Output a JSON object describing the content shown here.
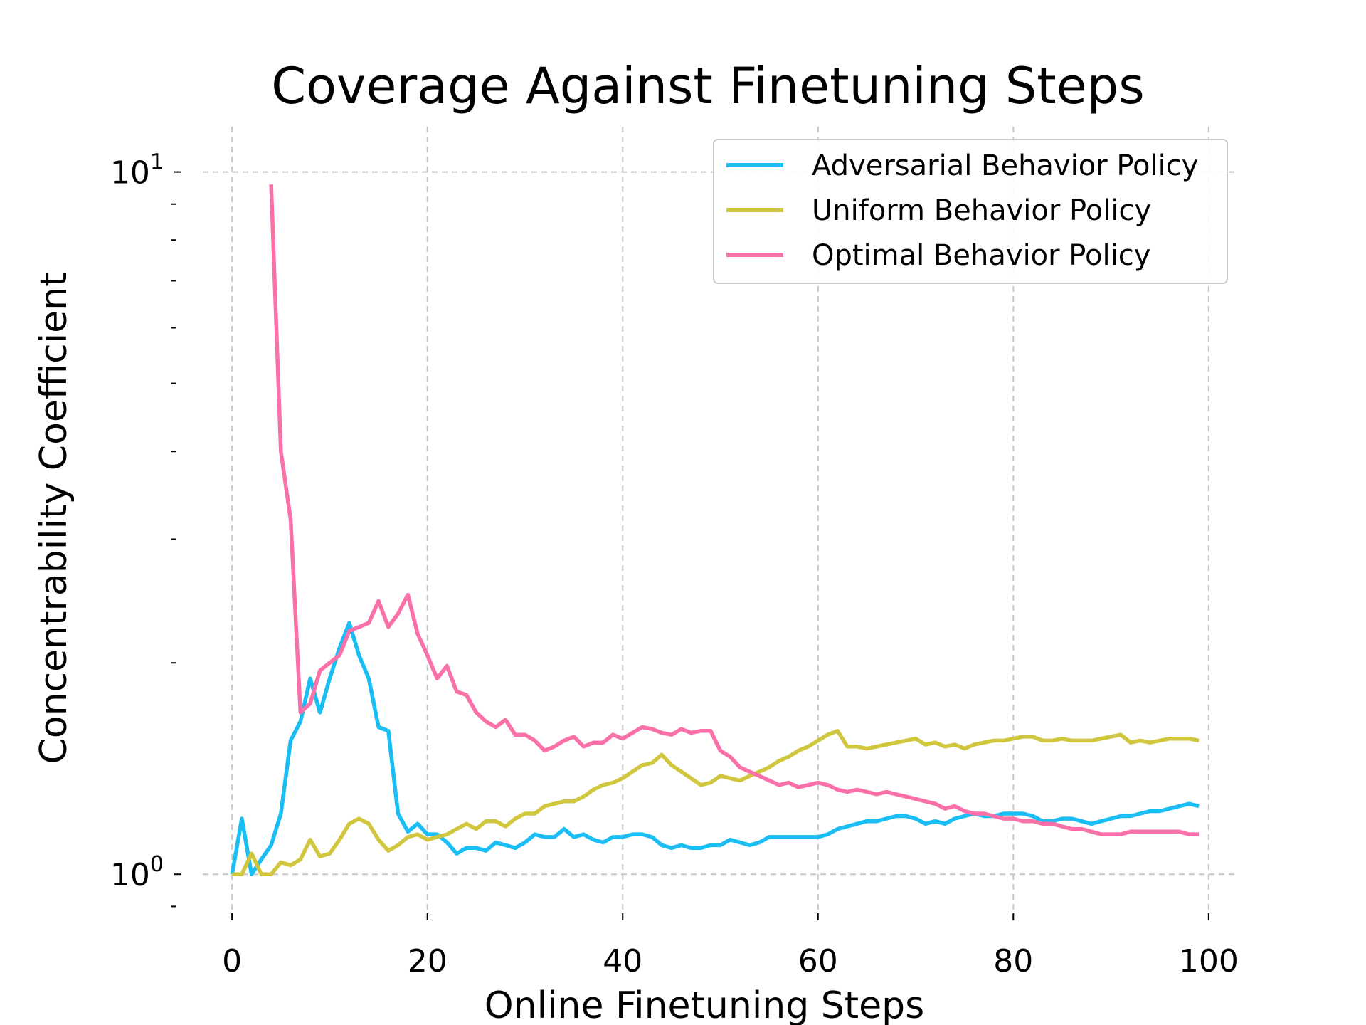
{
  "chart_data": {
    "type": "line",
    "title": "Coverage Against Finetuning Steps",
    "xlabel": "Online Finetuning Steps",
    "ylabel": "Concentrability Coefficient",
    "xlim": [
      -3,
      103
    ],
    "ylim": [
      0.88,
      11.6
    ],
    "yscale": "log",
    "grid": true,
    "legend_placement": "top-right",
    "x_ticks": [
      {
        "value": 0,
        "label": "0"
      },
      {
        "value": 20,
        "label": "20"
      },
      {
        "value": 40,
        "label": "40"
      },
      {
        "value": 60,
        "label": "60"
      },
      {
        "value": 80,
        "label": "80"
      },
      {
        "value": 100,
        "label": "100"
      }
    ],
    "y_ticks": [
      {
        "value": 1,
        "base": "10",
        "exp": "0"
      },
      {
        "value": 10,
        "base": "10",
        "exp": "1"
      }
    ],
    "y_minor_ticks": [
      0.9,
      2,
      3,
      4,
      5,
      6,
      7,
      8,
      9
    ],
    "series": [
      {
        "name": "Adversarial Behavior Policy",
        "color": "#1ABEF5",
        "x": [
          0,
          1,
          2,
          3,
          4,
          5,
          6,
          7,
          8,
          9,
          10,
          11,
          12,
          13,
          14,
          15,
          16,
          17,
          18,
          19,
          20,
          21,
          22,
          23,
          24,
          25,
          26,
          27,
          28,
          29,
          30,
          31,
          32,
          33,
          34,
          35,
          36,
          37,
          38,
          39,
          40,
          41,
          42,
          43,
          44,
          45,
          46,
          47,
          48,
          49,
          50,
          51,
          52,
          53,
          54,
          55,
          56,
          57,
          58,
          59,
          60,
          61,
          62,
          63,
          64,
          65,
          66,
          67,
          68,
          69,
          70,
          71,
          72,
          73,
          74,
          75,
          76,
          77,
          78,
          79,
          80,
          81,
          82,
          83,
          84,
          85,
          86,
          87,
          88,
          89,
          90,
          91,
          92,
          93,
          94,
          95,
          96,
          97,
          98,
          99
        ],
        "values": [
          1.0,
          1.2,
          1.0,
          1.05,
          1.1,
          1.22,
          1.55,
          1.65,
          1.9,
          1.7,
          1.9,
          2.1,
          2.28,
          2.05,
          1.9,
          1.62,
          1.6,
          1.22,
          1.15,
          1.18,
          1.14,
          1.14,
          1.11,
          1.07,
          1.09,
          1.09,
          1.08,
          1.11,
          1.1,
          1.09,
          1.11,
          1.14,
          1.13,
          1.13,
          1.16,
          1.13,
          1.14,
          1.12,
          1.11,
          1.13,
          1.13,
          1.14,
          1.14,
          1.13,
          1.1,
          1.09,
          1.1,
          1.09,
          1.09,
          1.1,
          1.1,
          1.12,
          1.11,
          1.1,
          1.11,
          1.13,
          1.13,
          1.13,
          1.13,
          1.13,
          1.13,
          1.14,
          1.16,
          1.17,
          1.18,
          1.19,
          1.19,
          1.2,
          1.21,
          1.21,
          1.2,
          1.18,
          1.19,
          1.18,
          1.2,
          1.21,
          1.22,
          1.21,
          1.21,
          1.22,
          1.22,
          1.22,
          1.21,
          1.19,
          1.19,
          1.2,
          1.2,
          1.19,
          1.18,
          1.19,
          1.2,
          1.21,
          1.21,
          1.22,
          1.23,
          1.23,
          1.24,
          1.25,
          1.26,
          1.25
        ]
      },
      {
        "name": "Uniform Behavior Policy",
        "color": "#D1C73F",
        "x": [
          0,
          1,
          2,
          3,
          4,
          5,
          6,
          7,
          8,
          9,
          10,
          11,
          12,
          13,
          14,
          15,
          16,
          17,
          18,
          19,
          20,
          21,
          22,
          23,
          24,
          25,
          26,
          27,
          28,
          29,
          30,
          31,
          32,
          33,
          34,
          35,
          36,
          37,
          38,
          39,
          40,
          41,
          42,
          43,
          44,
          45,
          46,
          47,
          48,
          49,
          50,
          51,
          52,
          53,
          54,
          55,
          56,
          57,
          58,
          59,
          60,
          61,
          62,
          63,
          64,
          65,
          66,
          67,
          68,
          69,
          70,
          71,
          72,
          73,
          74,
          75,
          76,
          77,
          78,
          79,
          80,
          81,
          82,
          83,
          84,
          85,
          86,
          87,
          88,
          89,
          90,
          91,
          92,
          93,
          94,
          95,
          96,
          97,
          98,
          99
        ],
        "values": [
          1.0,
          1.0,
          1.07,
          1.0,
          1.0,
          1.04,
          1.03,
          1.05,
          1.12,
          1.06,
          1.07,
          1.12,
          1.18,
          1.2,
          1.18,
          1.12,
          1.08,
          1.1,
          1.13,
          1.14,
          1.12,
          1.13,
          1.14,
          1.16,
          1.18,
          1.16,
          1.19,
          1.19,
          1.17,
          1.2,
          1.22,
          1.22,
          1.25,
          1.26,
          1.27,
          1.27,
          1.29,
          1.32,
          1.34,
          1.35,
          1.37,
          1.4,
          1.43,
          1.44,
          1.48,
          1.43,
          1.4,
          1.37,
          1.34,
          1.35,
          1.38,
          1.37,
          1.36,
          1.38,
          1.4,
          1.42,
          1.45,
          1.47,
          1.5,
          1.52,
          1.55,
          1.58,
          1.6,
          1.52,
          1.52,
          1.51,
          1.52,
          1.53,
          1.54,
          1.55,
          1.56,
          1.53,
          1.54,
          1.52,
          1.53,
          1.51,
          1.53,
          1.54,
          1.55,
          1.55,
          1.56,
          1.57,
          1.57,
          1.55,
          1.55,
          1.56,
          1.55,
          1.55,
          1.55,
          1.56,
          1.57,
          1.58,
          1.54,
          1.55,
          1.54,
          1.55,
          1.56,
          1.56,
          1.56,
          1.55
        ]
      },
      {
        "name": "Optimal Behavior Policy",
        "color": "#FA70A8",
        "x": [
          4,
          5,
          6,
          7,
          8,
          9,
          10,
          11,
          12,
          13,
          14,
          15,
          16,
          17,
          18,
          19,
          20,
          21,
          22,
          23,
          24,
          25,
          26,
          27,
          28,
          29,
          30,
          31,
          32,
          33,
          34,
          35,
          36,
          37,
          38,
          39,
          40,
          41,
          42,
          43,
          44,
          45,
          46,
          47,
          48,
          49,
          50,
          51,
          52,
          53,
          54,
          55,
          56,
          57,
          58,
          59,
          60,
          61,
          62,
          63,
          64,
          65,
          66,
          67,
          68,
          69,
          70,
          71,
          72,
          73,
          74,
          75,
          76,
          77,
          78,
          79,
          80,
          81,
          82,
          83,
          84,
          85,
          86,
          87,
          88,
          89,
          90,
          91,
          92,
          93,
          94,
          95,
          96,
          97,
          98,
          99
        ],
        "values": [
          9.6,
          4.0,
          3.2,
          1.7,
          1.75,
          1.95,
          2.0,
          2.05,
          2.22,
          2.25,
          2.28,
          2.45,
          2.25,
          2.35,
          2.5,
          2.2,
          2.05,
          1.9,
          1.98,
          1.82,
          1.8,
          1.7,
          1.65,
          1.62,
          1.66,
          1.58,
          1.58,
          1.55,
          1.5,
          1.52,
          1.55,
          1.57,
          1.52,
          1.54,
          1.54,
          1.58,
          1.56,
          1.59,
          1.62,
          1.61,
          1.59,
          1.58,
          1.61,
          1.59,
          1.6,
          1.6,
          1.5,
          1.47,
          1.42,
          1.4,
          1.38,
          1.36,
          1.34,
          1.35,
          1.33,
          1.34,
          1.35,
          1.34,
          1.32,
          1.31,
          1.32,
          1.31,
          1.3,
          1.31,
          1.3,
          1.29,
          1.28,
          1.27,
          1.26,
          1.24,
          1.25,
          1.23,
          1.22,
          1.22,
          1.21,
          1.2,
          1.2,
          1.19,
          1.19,
          1.18,
          1.18,
          1.17,
          1.16,
          1.16,
          1.15,
          1.14,
          1.14,
          1.14,
          1.15,
          1.15,
          1.15,
          1.15,
          1.15,
          1.15,
          1.14,
          1.14
        ]
      }
    ]
  }
}
